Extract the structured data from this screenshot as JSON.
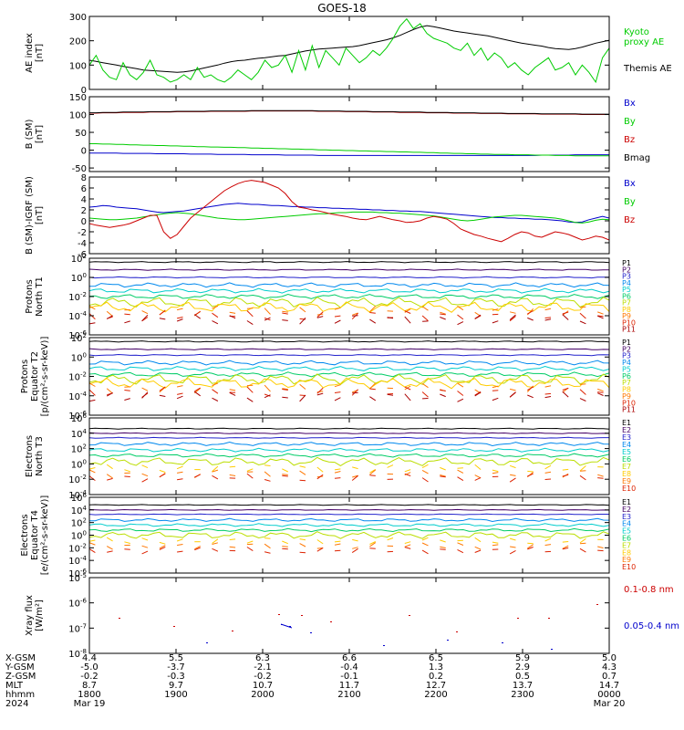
{
  "title": "GOES-18",
  "colors": {
    "black": "#000000",
    "green": "#00cc00",
    "blue": "#0000cc",
    "red": "#cc0000",
    "ch": [
      "#000000",
      "#440066",
      "#2222cc",
      "#0088ee",
      "#00cccc",
      "#00cc66",
      "#bbdd00",
      "#ffcc00",
      "#ff7700",
      "#dd2200",
      "#aa0000",
      "#880000"
    ]
  },
  "chart_data": [
    {
      "type": "line",
      "ylabel": "AE index\n[nT]",
      "ylim": [
        0,
        300
      ],
      "yticks": [
        "0",
        "100",
        "200",
        "300"
      ],
      "series": [
        {
          "name": "Themis AE",
          "color_key": "black",
          "values": [
            120,
            115,
            110,
            105,
            100,
            95,
            90,
            85,
            80,
            78,
            76,
            74,
            72,
            70,
            72,
            76,
            82,
            88,
            94,
            100,
            108,
            114,
            118,
            120,
            124,
            128,
            130,
            134,
            138,
            140,
            146,
            152,
            158,
            162,
            166,
            168,
            170,
            172,
            174,
            176,
            180,
            186,
            192,
            198,
            204,
            212,
            222,
            234,
            246,
            256,
            262,
            258,
            252,
            246,
            240,
            236,
            232,
            228,
            224,
            220,
            214,
            208,
            202,
            196,
            190,
            186,
            182,
            178,
            172,
            168,
            166,
            164,
            168,
            174,
            182,
            190,
            196,
            202
          ]
        },
        {
          "name": "Kyoto\nproxy AE",
          "color_key": "green",
          "values": [
            100,
            140,
            80,
            50,
            40,
            110,
            60,
            40,
            70,
            120,
            60,
            50,
            30,
            40,
            60,
            40,
            90,
            50,
            60,
            40,
            30,
            50,
            80,
            60,
            40,
            70,
            120,
            90,
            100,
            140,
            70,
            160,
            80,
            180,
            90,
            160,
            130,
            100,
            170,
            140,
            110,
            130,
            160,
            140,
            170,
            210,
            260,
            290,
            250,
            270,
            230,
            210,
            200,
            190,
            170,
            160,
            190,
            140,
            170,
            120,
            150,
            130,
            90,
            110,
            80,
            60,
            90,
            110,
            130,
            80,
            90,
            110,
            60,
            100,
            70,
            30,
            130,
            170
          ]
        }
      ]
    },
    {
      "type": "line",
      "ylabel": "B (SM)\n[nT]",
      "ylim": [
        -60,
        150
      ],
      "yticks": [
        "-50",
        "0",
        "50",
        "100",
        "150"
      ],
      "series": [
        {
          "name": "Bx",
          "color_key": "blue",
          "values": [
            -8,
            -8,
            -8,
            -8,
            -8,
            -9,
            -9,
            -9,
            -9,
            -9,
            -10,
            -10,
            -10,
            -10,
            -10,
            -11,
            -11,
            -11,
            -11,
            -12,
            -12,
            -12,
            -12,
            -12,
            -13,
            -13,
            -13,
            -13,
            -13,
            -14,
            -14,
            -14,
            -14,
            -14,
            -15,
            -15,
            -15,
            -15,
            -15,
            -15,
            -15,
            -15,
            -15,
            -15,
            -15,
            -15,
            -15,
            -15,
            -15,
            -15,
            -15,
            -15,
            -15,
            -15,
            -15,
            -15,
            -15,
            -15,
            -15,
            -15,
            -15,
            -15,
            -15,
            -15,
            -15,
            -15,
            -15,
            -14,
            -14,
            -14,
            -14,
            -14,
            -13,
            -13,
            -13,
            -13,
            -13,
            -13
          ]
        },
        {
          "name": "By",
          "color_key": "green",
          "values": [
            18,
            18,
            17,
            17,
            16,
            16,
            15,
            15,
            14,
            14,
            13,
            13,
            12,
            12,
            11,
            11,
            10,
            10,
            9,
            9,
            8,
            8,
            7,
            7,
            6,
            6,
            5,
            5,
            4,
            4,
            3,
            3,
            2,
            2,
            1,
            1,
            0,
            0,
            -1,
            -1,
            -2,
            -2,
            -3,
            -3,
            -4,
            -4,
            -5,
            -5,
            -6,
            -6,
            -7,
            -7,
            -8,
            -8,
            -9,
            -9,
            -10,
            -10,
            -11,
            -11,
            -12,
            -12,
            -12,
            -13,
            -13,
            -13,
            -14,
            -14,
            -14,
            -15,
            -15,
            -15,
            -16,
            -16,
            -16,
            -16,
            -16,
            -16
          ]
        },
        {
          "name": "Bz",
          "color_key": "red",
          "values": [
            104,
            104,
            105,
            105,
            105,
            106,
            106,
            106,
            106,
            107,
            107,
            107,
            107,
            108,
            108,
            108,
            108,
            108,
            109,
            109,
            109,
            109,
            109,
            109,
            110,
            110,
            110,
            110,
            110,
            110,
            110,
            110,
            110,
            110,
            109,
            109,
            109,
            109,
            108,
            108,
            108,
            108,
            107,
            107,
            107,
            107,
            106,
            106,
            106,
            106,
            105,
            105,
            105,
            105,
            104,
            104,
            104,
            104,
            103,
            103,
            103,
            103,
            102,
            102,
            102,
            102,
            102,
            101,
            101,
            101,
            101,
            101,
            101,
            100,
            100,
            100,
            100,
            100
          ]
        },
        {
          "name": "Bmag",
          "color_key": "black",
          "values": [
            105,
            105,
            106,
            106,
            106,
            107,
            107,
            107,
            107,
            108,
            108,
            108,
            108,
            109,
            109,
            109,
            109,
            109,
            110,
            110,
            110,
            110,
            110,
            110,
            111,
            111,
            111,
            111,
            111,
            111,
            111,
            111,
            111,
            111,
            110,
            110,
            110,
            110,
            109,
            109,
            109,
            109,
            108,
            108,
            108,
            108,
            107,
            107,
            107,
            107,
            106,
            106,
            106,
            106,
            105,
            105,
            105,
            105,
            104,
            104,
            104,
            104,
            103,
            103,
            103,
            103,
            103,
            102,
            102,
            102,
            102,
            102,
            102,
            101,
            101,
            101,
            101,
            101
          ]
        }
      ]
    },
    {
      "type": "line",
      "ylabel": "B (SM)-IGRF (SM)\n[nT]",
      "ylim": [
        -6,
        8
      ],
      "yticks": [
        "-6",
        "-4",
        "-2",
        "0",
        "2",
        "4",
        "6",
        "8"
      ],
      "series": [
        {
          "name": "Bx",
          "color_key": "blue",
          "values": [
            2.5,
            2.6,
            2.8,
            2.7,
            2.5,
            2.4,
            2.3,
            2.2,
            2.0,
            1.8,
            1.6,
            1.5,
            1.6,
            1.7,
            1.8,
            2.0,
            2.2,
            2.4,
            2.6,
            2.8,
            3.0,
            3.1,
            3.2,
            3.1,
            3.0,
            3.0,
            2.9,
            2.8,
            2.8,
            2.7,
            2.6,
            2.6,
            2.5,
            2.5,
            2.4,
            2.4,
            2.3,
            2.3,
            2.2,
            2.2,
            2.1,
            2.1,
            2.0,
            2.0,
            1.9,
            1.9,
            1.8,
            1.8,
            1.7,
            1.7,
            1.6,
            1.5,
            1.4,
            1.3,
            1.2,
            1.1,
            1.0,
            0.9,
            0.8,
            0.7,
            0.6,
            0.6,
            0.5,
            0.5,
            0.4,
            0.4,
            0.3,
            0.3,
            0.2,
            0.1,
            0.0,
            -0.2,
            -0.3,
            -0.2,
            0.2,
            0.5,
            0.8,
            0.5
          ]
        },
        {
          "name": "By",
          "color_key": "green",
          "values": [
            0.5,
            0.4,
            0.3,
            0.2,
            0.2,
            0.3,
            0.4,
            0.5,
            0.7,
            0.9,
            1.1,
            1.3,
            1.4,
            1.5,
            1.4,
            1.3,
            1.1,
            0.9,
            0.7,
            0.5,
            0.4,
            0.3,
            0.2,
            0.2,
            0.3,
            0.4,
            0.5,
            0.6,
            0.7,
            0.8,
            0.9,
            1.0,
            1.1,
            1.2,
            1.3,
            1.3,
            1.4,
            1.5,
            1.5,
            1.6,
            1.6,
            1.6,
            1.6,
            1.5,
            1.5,
            1.4,
            1.4,
            1.3,
            1.2,
            1.1,
            1.0,
            0.9,
            0.7,
            0.5,
            0.3,
            0.1,
            0.0,
            0.1,
            0.3,
            0.5,
            0.7,
            0.8,
            0.9,
            1.0,
            1.0,
            0.9,
            0.8,
            0.7,
            0.6,
            0.5,
            0.3,
            0.0,
            -0.3,
            -0.4,
            -0.2,
            0.1,
            0.3,
            0.2
          ]
        },
        {
          "name": "Bz",
          "color_key": "red",
          "values": [
            -0.5,
            -0.8,
            -1.0,
            -1.2,
            -1.0,
            -0.8,
            -0.5,
            0.0,
            0.5,
            1.0,
            1.0,
            -2.0,
            -3.2,
            -2.5,
            -1.0,
            0.5,
            1.5,
            2.5,
            3.5,
            4.5,
            5.5,
            6.2,
            6.8,
            7.2,
            7.4,
            7.2,
            7.0,
            6.5,
            6.0,
            5.0,
            3.5,
            2.5,
            2.3,
            2.0,
            1.8,
            1.5,
            1.2,
            1.0,
            0.8,
            0.5,
            0.3,
            0.2,
            0.5,
            0.8,
            0.5,
            0.2,
            0.0,
            -0.3,
            -0.2,
            0.0,
            0.5,
            0.8,
            0.6,
            0.3,
            -0.5,
            -1.5,
            -2.0,
            -2.5,
            -2.8,
            -3.2,
            -3.5,
            -3.8,
            -3.2,
            -2.5,
            -2.0,
            -2.2,
            -2.8,
            -3.0,
            -2.5,
            -2.0,
            -2.2,
            -2.5,
            -3.0,
            -3.5,
            -3.2,
            -2.8,
            -3.0,
            -3.5
          ]
        }
      ]
    },
    {
      "type": "line",
      "ylabel": "Protons\nNorth T1",
      "log": true,
      "ylim": [
        -6,
        2
      ],
      "yticks": [
        "10^-6",
        "10^-4",
        "10^-2",
        "10^0",
        "10^2"
      ],
      "channels": [
        "P1",
        "P2",
        "P3",
        "P4",
        "P5",
        "P6",
        "P7",
        "P8",
        "P9",
        "P10",
        "P11"
      ],
      "levels": [
        1.6,
        0.8,
        0.0,
        -0.8,
        -1.4,
        -2.0,
        -2.6,
        -3.1,
        -3.5,
        -4.0,
        -4.4
      ]
    },
    {
      "type": "line",
      "ylabel": "Protons\nEquator T2\n[p/(cm²-s-sr-keV)]",
      "log": true,
      "ylim": [
        -6,
        2
      ],
      "yticks": [
        "10^-6",
        "10^-4",
        "10^-2",
        "10^0",
        "10^2"
      ],
      "channels": [
        "P1",
        "P2",
        "P3",
        "P4",
        "P5",
        "P6",
        "P7",
        "P8",
        "P9",
        "P10",
        "P11"
      ],
      "levels": [
        1.6,
        0.8,
        0.2,
        -0.6,
        -1.2,
        -1.8,
        -2.3,
        -2.7,
        -3.2,
        -3.6,
        -4.1
      ]
    },
    {
      "type": "line",
      "ylabel": "Electrons\nNorth T3",
      "log": true,
      "ylim": [
        -4,
        6
      ],
      "yticks": [
        "10^-4",
        "10^-2",
        "10^0",
        "10^2",
        "10^4",
        "10^6"
      ],
      "channels": [
        "E1",
        "E2",
        "E3",
        "E4",
        "E5",
        "E6",
        "E7",
        "E8",
        "E9",
        "E10"
      ],
      "levels": [
        4.6,
        4.0,
        3.4,
        2.6,
        1.8,
        1.1,
        0.3,
        -0.6,
        -1.3,
        -1.8
      ]
    },
    {
      "type": "line",
      "ylabel": "Electrons\nEquator T4\n[e/(cm²-s-sr-keV)]",
      "log": true,
      "ylim": [
        -6,
        6
      ],
      "yticks": [
        "10^-6",
        "10^-4",
        "10^-2",
        "10^0",
        "10^2",
        "10^4",
        "10^6"
      ],
      "channels": [
        "E1",
        "E2",
        "E3",
        "E4",
        "E5",
        "E6",
        "E7",
        "E8",
        "E9",
        "E10"
      ],
      "levels": [
        4.8,
        4.0,
        3.3,
        2.4,
        1.6,
        0.8,
        0.0,
        -0.9,
        -1.7,
        -2.4
      ]
    },
    {
      "type": "scatter",
      "ylabel": "Xray flux\n[W/m²]",
      "log": true,
      "ylim": [
        -8,
        -5
      ],
      "yticks": [
        "10^-8",
        "10^-7",
        "10^-6",
        "10^-5"
      ],
      "series": [
        {
          "name": "0.1-0.8 nm",
          "color_key": "red"
        },
        {
          "name": "0.05-0.4 nm",
          "color_key": "blue"
        }
      ]
    }
  ],
  "xaxis": {
    "row_labels": [
      "X-GSM",
      "Y-GSM",
      "Z-GSM",
      "MLT",
      "hhmm",
      "2024"
    ],
    "columns": [
      {
        "x": "4.4",
        "y": "-5.0",
        "z": "-0.2",
        "mlt": "8.7",
        "hhmm": "1800",
        "date": "Mar 19"
      },
      {
        "x": "5.5",
        "y": "-3.7",
        "z": "-0.3",
        "mlt": "9.7",
        "hhmm": "1900",
        "date": ""
      },
      {
        "x": "6.3",
        "y": "-2.1",
        "z": "-0.2",
        "mlt": "10.7",
        "hhmm": "2000",
        "date": ""
      },
      {
        "x": "6.6",
        "y": "-0.4",
        "z": "-0.1",
        "mlt": "11.7",
        "hhmm": "2100",
        "date": ""
      },
      {
        "x": "6.5",
        "y": "1.3",
        "z": "0.2",
        "mlt": "12.7",
        "hhmm": "2200",
        "date": ""
      },
      {
        "x": "5.9",
        "y": "2.9",
        "z": "0.5",
        "mlt": "13.7",
        "hhmm": "2300",
        "date": ""
      },
      {
        "x": "5.0",
        "y": "4.3",
        "z": "0.7",
        "mlt": "14.7",
        "hhmm": "0000",
        "date": "Mar 20"
      }
    ]
  }
}
